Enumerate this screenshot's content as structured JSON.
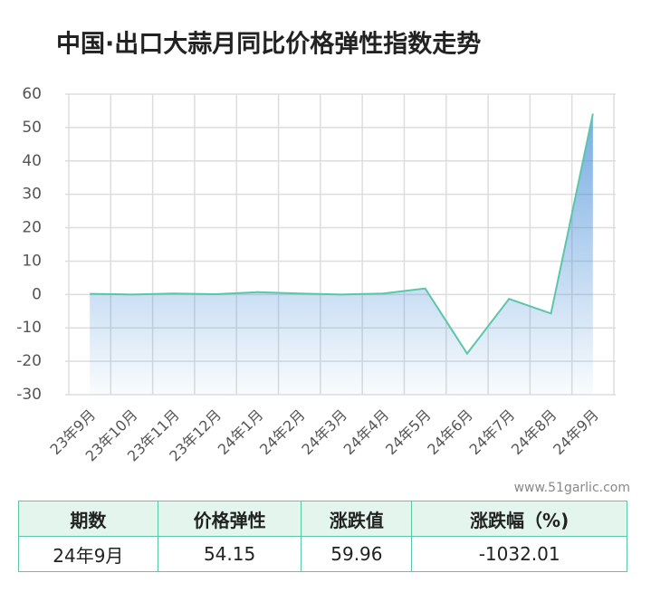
{
  "chart_data": {
    "type": "line",
    "title": "中国·出口大蒜月同比价格弹性指数走势",
    "categories": [
      "23年9月",
      "23年10月",
      "23年11月",
      "23年12月",
      "24年1月",
      "24年2月",
      "24年3月",
      "24年4月",
      "24年5月",
      "24年6月",
      "24年7月",
      "24年8月",
      "24年9月"
    ],
    "values": [
      0.2,
      0,
      0.3,
      0.1,
      0.7,
      0.3,
      0,
      0.3,
      1.8,
      -17.7,
      -1.3,
      -5.7,
      54.15
    ],
    "color": "#5cc6a8",
    "area_color": "#4a90d9",
    "ylim": [
      -30,
      60
    ],
    "yticks": [
      -30,
      -20,
      -10,
      0,
      10,
      20,
      30,
      40,
      50,
      60
    ],
    "grid": true
  },
  "watermark": "www.51garlic.com",
  "table": {
    "header": [
      "期数",
      "价格弹性",
      "涨跌值",
      "涨跌幅（%)"
    ],
    "rows": [
      [
        "24年9月",
        "54.15",
        "59.96",
        "-1032.01"
      ]
    ]
  }
}
